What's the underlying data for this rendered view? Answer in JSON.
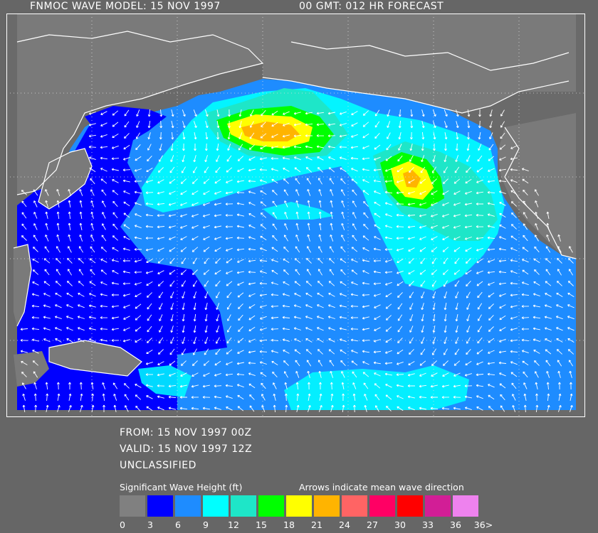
{
  "header": {
    "title": "FNMOC WAVE MODEL: 15 NOV 1997",
    "forecast": "00 GMT:  012 HR FORECAST"
  },
  "info": {
    "from": "FROM: 15 NOV 1997 00Z",
    "valid": "VALID: 15 NOV 1997 12Z",
    "classification": "UNCLASSIFIED"
  },
  "legend": {
    "title": "Significant Wave Height (ft)",
    "arrows_note": "Arrows indicate mean wave direction",
    "ticks": [
      "0",
      "3",
      "6",
      "9",
      "12",
      "15",
      "18",
      "21",
      "24",
      "27",
      "30",
      "33",
      "36",
      "36>"
    ],
    "colors": [
      "#808080",
      "#0000ff",
      "#1e8cff",
      "#00ffff",
      "#1ee6c8",
      "#00ff00",
      "#ffff00",
      "#ffb400",
      "#ff6464",
      "#ff0064",
      "#ff0000",
      "#d21e96",
      "#ee82ee"
    ]
  },
  "map_colors": {
    "land": "#7a7a7a",
    "ocean_low": "#0000ff",
    "ocean_mid": "#1e8cff",
    "ocean_high": "#00ffff",
    "ocean_12": "#1ee6c8",
    "ocean_15": "#00ff00",
    "ocean_18": "#ffff00",
    "ocean_21": "#ffb400",
    "coast": "#ffffff"
  }
}
